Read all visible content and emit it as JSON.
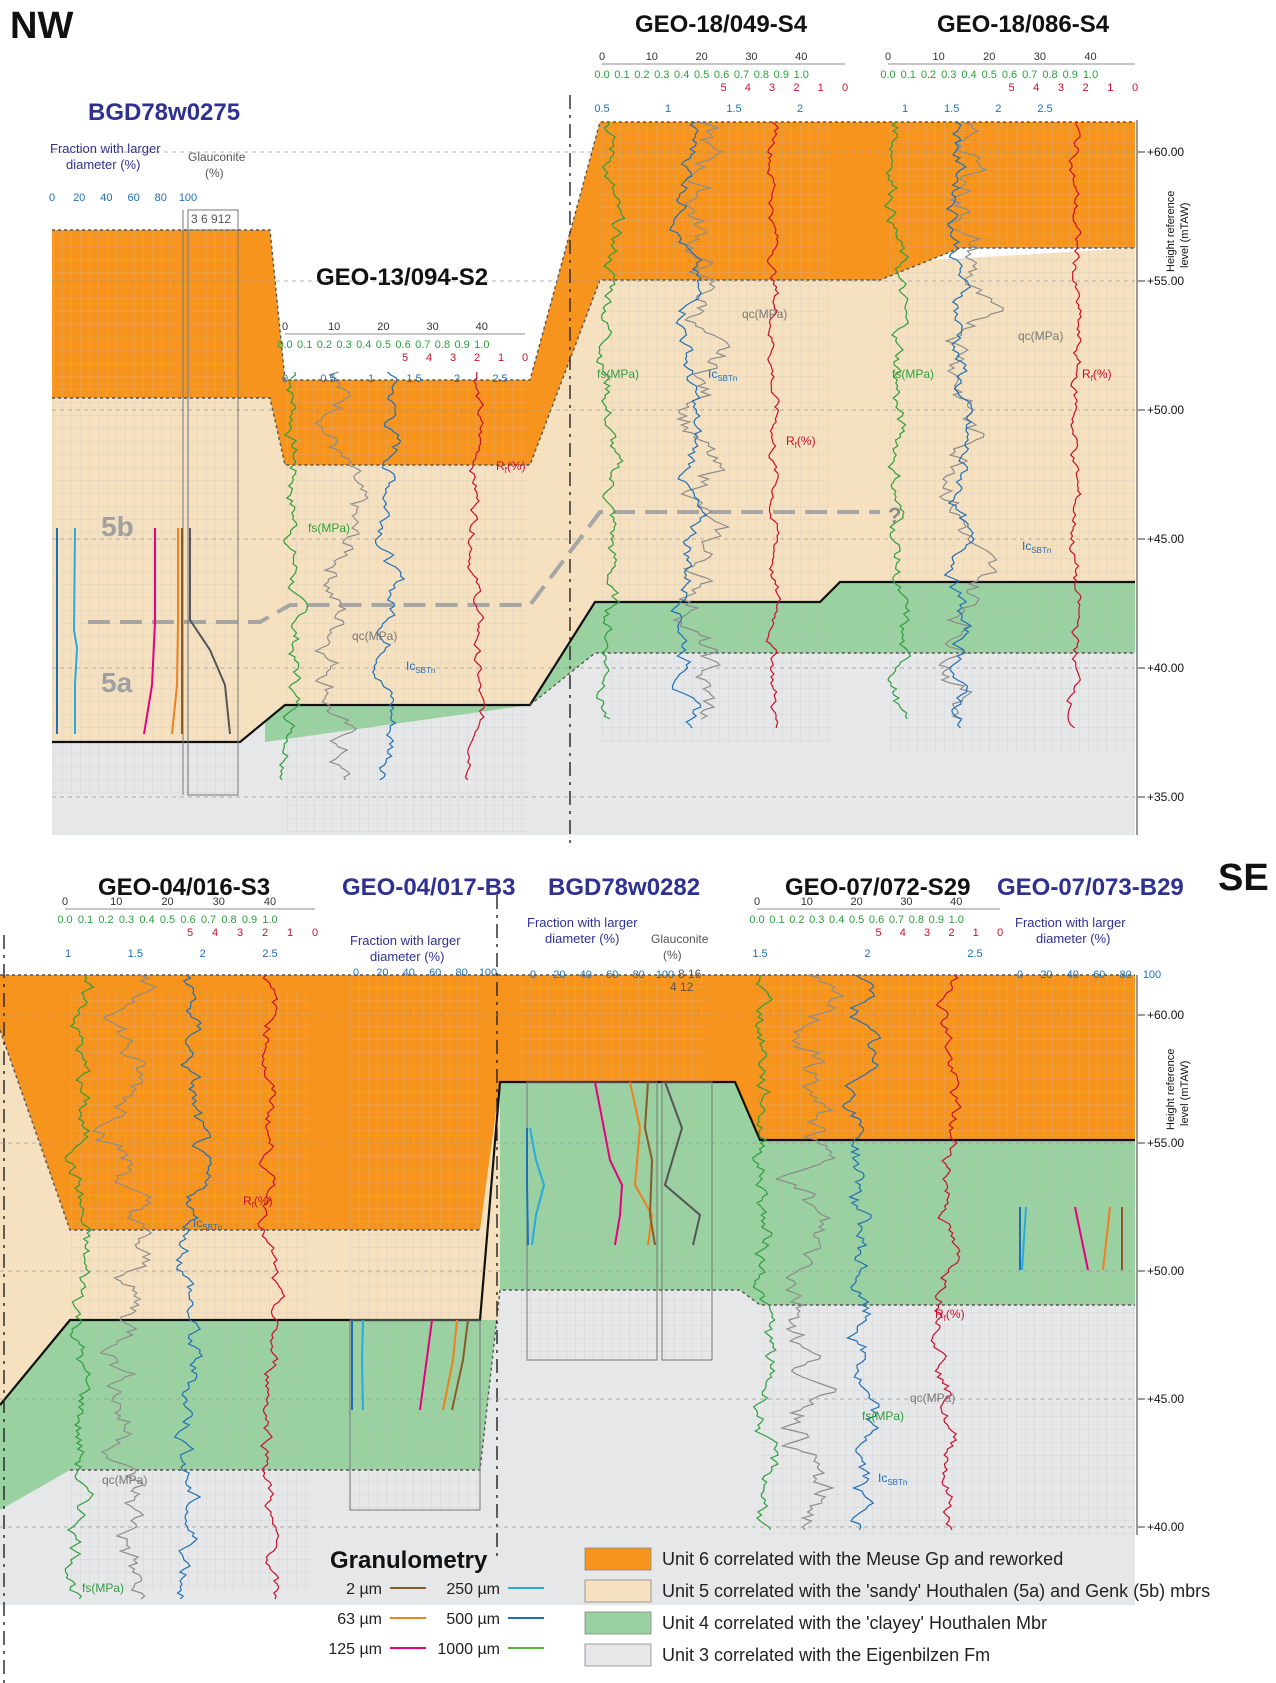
{
  "corner_labels": {
    "nw": "NW",
    "se": "SE"
  },
  "boreholes_top": {
    "bgd1": "BGD78w0275",
    "geo13": "GEO-13/094-S2",
    "geo18a": "GEO-18/049-S4",
    "geo18b": "GEO-18/086-S4"
  },
  "boreholes_bottom": {
    "geo04a": "GEO-04/016-S3",
    "geo04b": "GEO-04/017-B3",
    "bgd2": "BGD78w0282",
    "geo07a": "GEO-07/072-S29",
    "geo07b": "GEO-07/073-B29"
  },
  "headers": {
    "fraction_l1": "Fraction with larger",
    "fraction_l2": "diameter (%)",
    "glauconite_l1": "Glauconite",
    "glauconite_l2": "(%)",
    "glauc_ticks_top": "3 6 912",
    "glauc_ticks_b1": "8 16",
    "glauc_ticks_b2": "4 12"
  },
  "scales": {
    "frac_ticks": [
      "0",
      "20",
      "40",
      "60",
      "80",
      "100"
    ],
    "qc_ticks": [
      "0",
      "10",
      "20",
      "30",
      "40"
    ],
    "fs_ticks": [
      "0.0",
      "0.1",
      "0.2",
      "0.3",
      "0.4",
      "0.5",
      "0.6",
      "0.7",
      "0.8",
      "0.9",
      "1.0"
    ],
    "rf_ticks": [
      "5",
      "4",
      "3",
      "2",
      "1",
      "0"
    ],
    "ic_ticks_13": [
      "0",
      "0.5",
      "1",
      "1.5",
      "2",
      "2.5"
    ],
    "ic_ticks_18a": [
      "0.5",
      "1",
      "1.5",
      "2"
    ],
    "ic_ticks_18b": [
      "1",
      "1.5",
      "2",
      "2.5"
    ],
    "ic_ticks_04": [
      "1",
      "1.5",
      "2",
      "2.5"
    ],
    "ic_ticks_07": [
      "1.5",
      "2",
      "2.5"
    ]
  },
  "curve_labels": {
    "fs": "fs(MPa)",
    "qc": "qc(MPa)",
    "ic": "Ic",
    "ic_sub": "SBTn",
    "rf": "R",
    "rf_sub": "f",
    "rf_unit": "(%)",
    "question": "?"
  },
  "sub_units": {
    "u5b": "5b",
    "u5a": "5a"
  },
  "axis": {
    "title_l1": "Height reference",
    "title_l2": "level (mTAW)",
    "top_ticks": [
      "+60.00",
      "+55.00",
      "+50.00",
      "+45.00",
      "+40.00",
      "+35.00"
    ],
    "bottom_ticks": [
      "+60.00",
      "+55.00",
      "+50.00",
      "+45.00",
      "+40.00"
    ]
  },
  "granulometry": {
    "title": "Granulometry",
    "items": [
      {
        "label": "2 µm",
        "color": "#8b5a2b"
      },
      {
        "label": "250 µm",
        "color": "#29a9e0"
      },
      {
        "label": "63 µm",
        "color": "#f07f1d"
      },
      {
        "label": "500 µm",
        "color": "#1f6fb5"
      },
      {
        "label": "125 µm",
        "color": "#e6007e"
      },
      {
        "label": "1000 µm",
        "color": "#5ab536"
      }
    ]
  },
  "units_legend": [
    {
      "label": "Unit 6 correlated with the  Meuse Gp and reworked",
      "color": "#f7941d"
    },
    {
      "label": "Unit 5 correlated with the 'sandy' Houthalen (5a) and Genk (5b) mbrs",
      "color": "#f5e1c0"
    },
    {
      "label": "Unit 4 correlated with the 'clayey' Houthalen Mbr",
      "color": "#99d1a0"
    },
    {
      "label": "Unit 3 correlated with the Eigenbilzen Fm",
      "color": "#e6e7e8"
    }
  ],
  "colors": {
    "fs": "#2e9e3e",
    "qc": "#8c8c8c",
    "ic": "#1f6fb5",
    "rf": "#c8102e",
    "title_blue": "#2e3192"
  }
}
